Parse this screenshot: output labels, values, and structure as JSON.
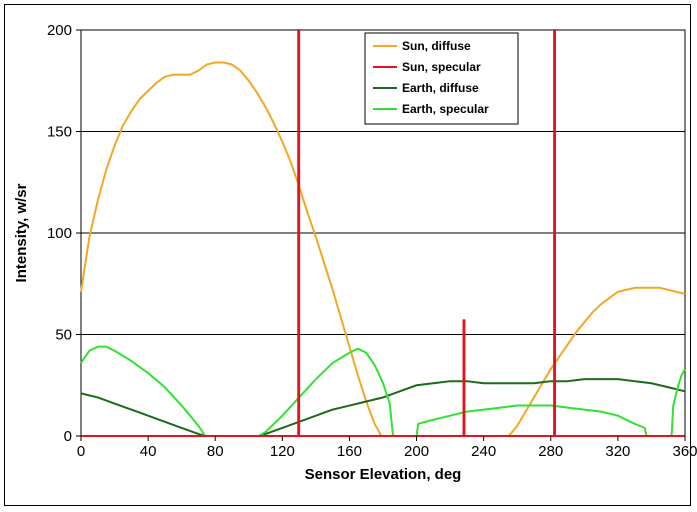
{
  "chart_data": {
    "type": "line",
    "xlabel": "Sensor Elevation, deg",
    "ylabel": "Intensity, w/sr",
    "xlim": [
      0,
      360
    ],
    "ylim": [
      0,
      200
    ],
    "xticks": [
      0,
      40,
      80,
      120,
      160,
      200,
      240,
      280,
      320,
      360
    ],
    "yticks": [
      0,
      50,
      100,
      150,
      200
    ],
    "grid": "horizontal",
    "legend_position": "top-right",
    "series": [
      {
        "name": "Sun, diffuse",
        "color": "#F5A623",
        "points": [
          [
            0,
            71
          ],
          [
            5,
            98
          ],
          [
            10,
            116
          ],
          [
            15,
            131
          ],
          [
            20,
            143
          ],
          [
            25,
            153
          ],
          [
            30,
            160
          ],
          [
            35,
            166
          ],
          [
            40,
            170
          ],
          [
            45,
            174
          ],
          [
            50,
            177
          ],
          [
            55,
            178
          ],
          [
            60,
            178
          ],
          [
            65,
            178
          ],
          [
            70,
            180
          ],
          [
            75,
            183
          ],
          [
            80,
            184
          ],
          [
            85,
            184
          ],
          [
            90,
            183
          ],
          [
            95,
            180
          ],
          [
            100,
            175
          ],
          [
            105,
            169
          ],
          [
            110,
            162
          ],
          [
            115,
            154
          ],
          [
            120,
            145
          ],
          [
            125,
            135
          ],
          [
            130,
            123
          ],
          [
            135,
            110
          ],
          [
            140,
            98
          ],
          [
            145,
            85
          ],
          [
            150,
            72
          ],
          [
            155,
            58
          ],
          [
            160,
            44
          ],
          [
            165,
            30
          ],
          [
            170,
            17
          ],
          [
            175,
            6
          ],
          [
            179,
            0
          ],
          [
            255,
            0
          ],
          [
            260,
            5
          ],
          [
            265,
            12
          ],
          [
            270,
            19
          ],
          [
            275,
            26
          ],
          [
            280,
            33
          ],
          [
            285,
            39
          ],
          [
            290,
            45
          ],
          [
            295,
            51
          ],
          [
            300,
            56
          ],
          [
            305,
            61
          ],
          [
            310,
            65
          ],
          [
            315,
            68
          ],
          [
            320,
            71
          ],
          [
            325,
            72
          ],
          [
            330,
            73
          ],
          [
            335,
            73
          ],
          [
            340,
            73
          ],
          [
            345,
            73
          ],
          [
            350,
            72
          ],
          [
            355,
            71
          ],
          [
            360,
            70
          ]
        ]
      },
      {
        "name": "Sun, specular",
        "color": "#E8101A",
        "points": [
          [
            0,
            0
          ],
          [
            129.5,
            0
          ],
          [
            129.5,
            200
          ],
          [
            130,
            200
          ],
          [
            130,
            0
          ],
          [
            228,
            0
          ],
          [
            228,
            57
          ],
          [
            228.5,
            57
          ],
          [
            228.5,
            0
          ],
          [
            282,
            0
          ],
          [
            282,
            200
          ],
          [
            282.5,
            200
          ],
          [
            282.5,
            0
          ],
          [
            360,
            0
          ]
        ]
      },
      {
        "name": "Earth, diffuse",
        "color": "#1B6B1B",
        "points": [
          [
            0,
            21
          ],
          [
            10,
            19
          ],
          [
            20,
            16
          ],
          [
            30,
            13
          ],
          [
            40,
            10
          ],
          [
            50,
            7
          ],
          [
            60,
            4
          ],
          [
            70,
            1
          ],
          [
            74,
            0
          ],
          [
            106,
            0
          ],
          [
            110,
            1
          ],
          [
            120,
            4
          ],
          [
            130,
            7
          ],
          [
            140,
            10
          ],
          [
            150,
            13
          ],
          [
            160,
            15
          ],
          [
            170,
            17
          ],
          [
            180,
            19
          ],
          [
            190,
            22
          ],
          [
            200,
            25
          ],
          [
            210,
            26
          ],
          [
            220,
            27
          ],
          [
            230,
            27
          ],
          [
            240,
            26
          ],
          [
            250,
            26
          ],
          [
            260,
            26
          ],
          [
            270,
            26
          ],
          [
            280,
            27
          ],
          [
            290,
            27
          ],
          [
            300,
            28
          ],
          [
            310,
            28
          ],
          [
            320,
            28
          ],
          [
            330,
            27
          ],
          [
            340,
            26
          ],
          [
            350,
            24
          ],
          [
            360,
            22
          ]
        ]
      },
      {
        "name": "Earth, specular",
        "color": "#33E033",
        "points": [
          [
            0,
            36
          ],
          [
            5,
            42
          ],
          [
            10,
            44
          ],
          [
            15,
            44
          ],
          [
            20,
            42
          ],
          [
            30,
            37
          ],
          [
            40,
            31
          ],
          [
            50,
            24
          ],
          [
            60,
            15
          ],
          [
            70,
            5
          ],
          [
            74,
            0
          ],
          [
            106,
            0
          ],
          [
            110,
            2
          ],
          [
            120,
            10
          ],
          [
            130,
            19
          ],
          [
            140,
            28
          ],
          [
            150,
            36
          ],
          [
            160,
            41
          ],
          [
            165,
            43
          ],
          [
            170,
            41
          ],
          [
            175,
            35
          ],
          [
            180,
            26
          ],
          [
            184,
            16
          ],
          [
            186,
            0
          ],
          [
            200,
            0
          ],
          [
            201,
            6
          ],
          [
            210,
            8
          ],
          [
            220,
            10
          ],
          [
            230,
            12
          ],
          [
            240,
            13
          ],
          [
            250,
            14
          ],
          [
            260,
            15
          ],
          [
            270,
            15
          ],
          [
            280,
            15
          ],
          [
            290,
            14
          ],
          [
            300,
            13
          ],
          [
            310,
            12
          ],
          [
            320,
            10
          ],
          [
            330,
            6
          ],
          [
            336,
            4
          ],
          [
            337,
            0
          ],
          [
            352,
            0
          ],
          [
            353,
            15
          ],
          [
            356,
            25
          ],
          [
            358,
            30
          ],
          [
            360,
            33
          ]
        ]
      }
    ]
  }
}
